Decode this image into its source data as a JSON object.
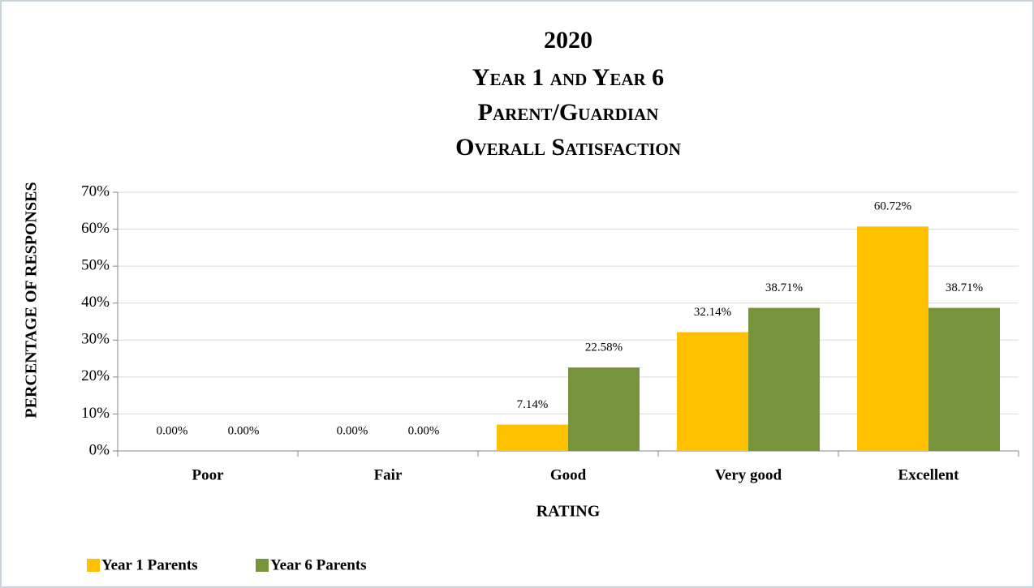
{
  "chart_data": {
    "type": "bar",
    "title": [
      "2020",
      "Year 1 and Year 6",
      "Parent/Guardian",
      "Overall Satisfaction"
    ],
    "x_label": "RATING",
    "y_label": "PERCENTAGE OF RESPONSES",
    "categories": [
      "Poor",
      "Fair",
      "Good",
      "Very good",
      "Excellent"
    ],
    "series": [
      {
        "name": "Year 1 Parents",
        "color": "#ffc000",
        "values": [
          0,
          0,
          7.14,
          32.14,
          60.72
        ],
        "value_labels": [
          "0.00%",
          "0.00%",
          "7.14%",
          "32.14%",
          "60.72%"
        ]
      },
      {
        "name": "Year 6 Parents",
        "color": "#77933c",
        "values": [
          0,
          0,
          22.58,
          38.71,
          38.71
        ],
        "value_labels": [
          "0.00%",
          "0.00%",
          "22.58%",
          "38.71%",
          "38.71%"
        ]
      }
    ],
    "ylim": [
      0,
      70
    ],
    "yticks": [
      {
        "value": 0,
        "label": "0%"
      },
      {
        "value": 10,
        "label": "10%"
      },
      {
        "value": 20,
        "label": "20%"
      },
      {
        "value": 30,
        "label": "30%"
      },
      {
        "value": 40,
        "label": "40%"
      },
      {
        "value": 50,
        "label": "50%"
      },
      {
        "value": 60,
        "label": "60%"
      },
      {
        "value": 70,
        "label": "70%"
      }
    ],
    "grid": true,
    "legend": "bottom-left"
  }
}
